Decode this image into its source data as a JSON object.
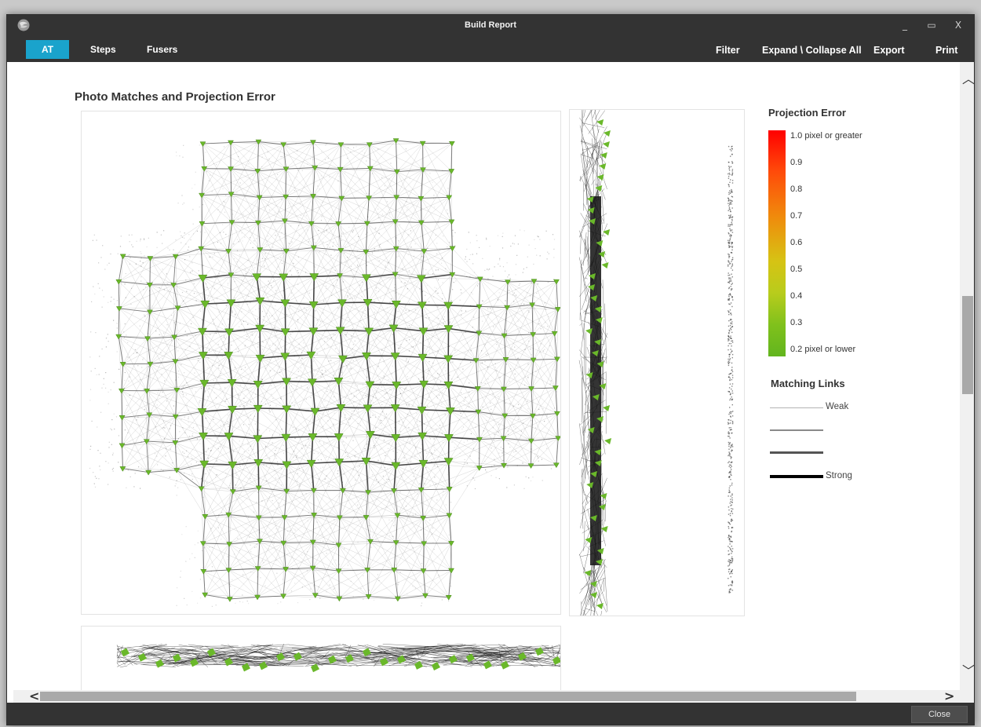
{
  "window": {
    "title": "Build Report"
  },
  "titlebar": {
    "minimize_glyph": "_",
    "maximize_glyph": "▭",
    "close_glyph": "X"
  },
  "tabs": [
    {
      "label": "AT",
      "active": true
    },
    {
      "label": "Steps",
      "active": false
    },
    {
      "label": "Fusers",
      "active": false
    }
  ],
  "menu": {
    "filter": "Filter",
    "expand_collapse": "Expand \\ Collapse All",
    "export": "Export",
    "print": "Print"
  },
  "report": {
    "section_title": "Photo Matches and Projection Error"
  },
  "legend": {
    "projection_error_title": "Projection Error",
    "scale_labels": [
      "1.0 pixel or greater",
      "0.9",
      "0.8",
      "0.7",
      "0.6",
      "0.5",
      "0.4",
      "0.3",
      "0.2 pixel or lower"
    ],
    "gradient_colors": [
      "#ff0000",
      "#f08a0c",
      "#d6c314",
      "#62b51e"
    ],
    "matching_links_title": "Matching Links",
    "weak_label": "Weak",
    "strong_label": "Strong"
  },
  "scrollbar": {
    "up": "︿",
    "down": "﹀",
    "left": "<",
    "right": ">"
  },
  "footer": {
    "close_label": "Close"
  },
  "colors": {
    "accent": "#1aa3cc",
    "camera": "#6ab82a",
    "chrome": "#333333"
  }
}
